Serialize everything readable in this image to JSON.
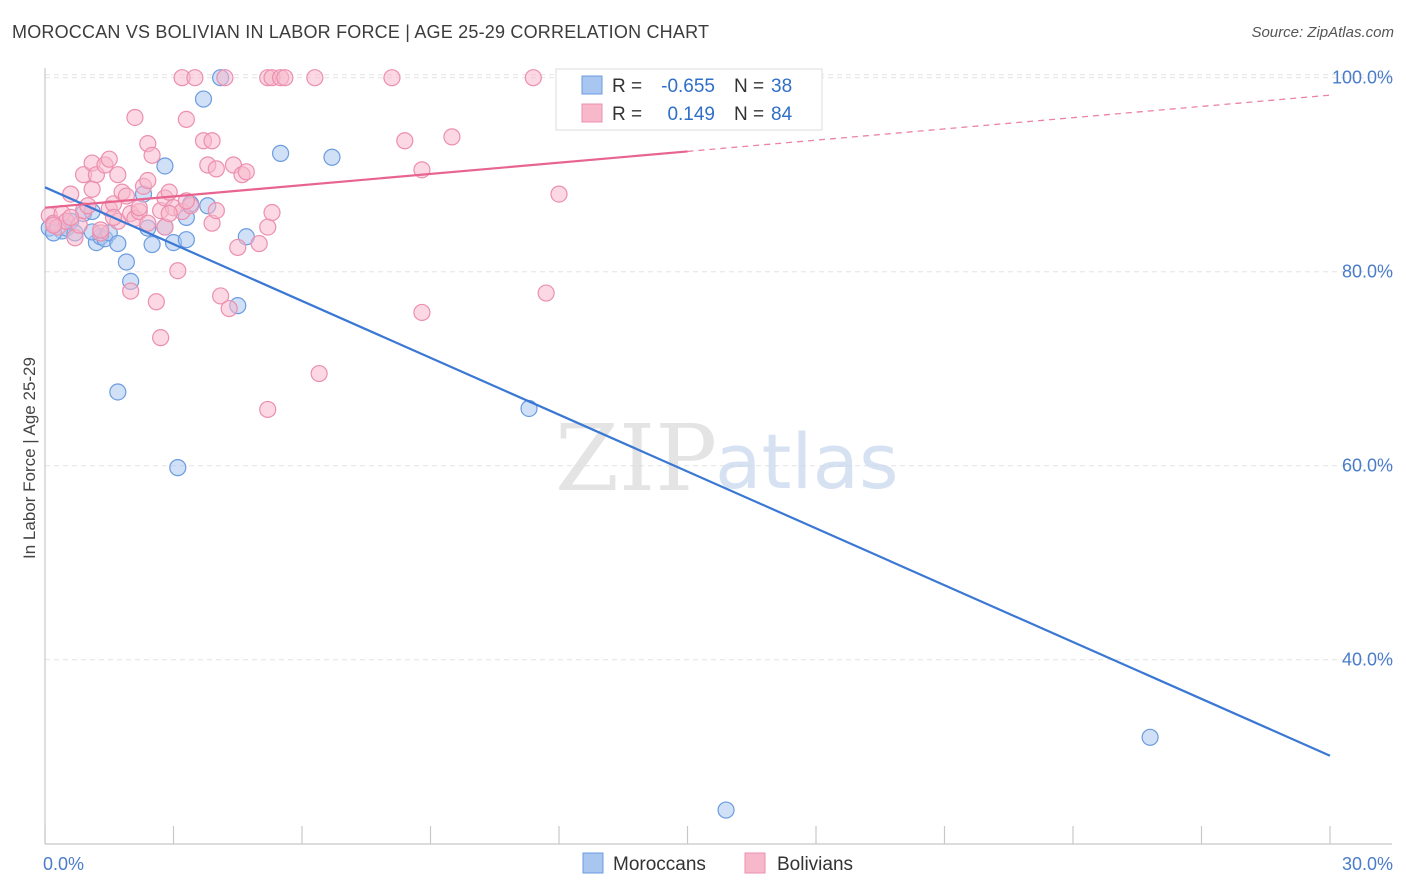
{
  "title": "MOROCCAN VS BOLIVIAN IN LABOR FORCE | AGE 25-29 CORRELATION CHART",
  "source": "Source: ZipAtlas.com",
  "watermark": {
    "zip": "ZIP",
    "atlas": "atlas"
  },
  "chart_data": {
    "type": "scatter",
    "xlabel": "",
    "ylabel": "In Labor Force | Age 25-29",
    "xlim": [
      0,
      30
    ],
    "ylim": [
      21,
      101
    ],
    "x_tick_labels": [
      "0.0%",
      "30.0%"
    ],
    "y_ticks": [
      100,
      80,
      60,
      40
    ],
    "y_tick_labels": [
      "100.0%",
      "80.0%",
      "60.0%",
      "40.0%"
    ],
    "colors": {
      "moroccans_fill": "#a9c6f0",
      "moroccans_stroke": "#6b9be0",
      "moroccans_line": "#3a78d4",
      "bolivians_fill": "#f7b8cc",
      "bolivians_stroke": "#ec8fae",
      "bolivians_line": "#e8648f",
      "grid": "#e3e3e3",
      "axis": "#c8c8c8",
      "tick_label": "#4a7cc9"
    },
    "legend_stats": [
      {
        "r_label": "R =",
        "r_value": "-0.655",
        "n_label": "N =",
        "n_value": "38"
      },
      {
        "r_label": "R =",
        "r_value": "0.149",
        "n_label": "N =",
        "n_value": "84"
      }
    ],
    "series": [
      {
        "name": "Moroccans",
        "trend": {
          "x": [
            0,
            30
          ],
          "y": [
            88.7,
            30.1
          ],
          "dashed_from_x": null
        },
        "points": [
          [
            0.1,
            84.5
          ],
          [
            0.2,
            85.0
          ],
          [
            0.4,
            84.2
          ],
          [
            0.5,
            84.5
          ],
          [
            0.6,
            85.2
          ],
          [
            0.9,
            86.0
          ],
          [
            1.1,
            86.2
          ],
          [
            1.2,
            83.0
          ],
          [
            1.3,
            83.6
          ],
          [
            1.4,
            83.4
          ],
          [
            1.5,
            84.0
          ],
          [
            1.7,
            82.9
          ],
          [
            1.7,
            67.6
          ],
          [
            1.9,
            81.0
          ],
          [
            2.0,
            79.0
          ],
          [
            2.3,
            88.0
          ],
          [
            2.4,
            84.5
          ],
          [
            2.5,
            82.8
          ],
          [
            2.8,
            84.6
          ],
          [
            2.8,
            90.9
          ],
          [
            3.0,
            83.0
          ],
          [
            3.1,
            59.8
          ],
          [
            3.3,
            83.3
          ],
          [
            3.3,
            85.6
          ],
          [
            3.4,
            87.0
          ],
          [
            3.7,
            97.8
          ],
          [
            3.8,
            86.8
          ],
          [
            4.1,
            100.0
          ],
          [
            4.5,
            76.5
          ],
          [
            4.7,
            83.6
          ],
          [
            5.5,
            92.2
          ],
          [
            6.7,
            91.8
          ],
          [
            11.3,
            65.9
          ],
          [
            15.9,
            24.5
          ],
          [
            25.8,
            32.0
          ],
          [
            0.2,
            84.0
          ],
          [
            0.7,
            84.0
          ],
          [
            1.1,
            84.1
          ]
        ]
      },
      {
        "name": "Bolivians",
        "trend": {
          "x": [
            0,
            30
          ],
          "y": [
            86.6,
            98.2
          ],
          "dashed_from_x": 15
        },
        "points": [
          [
            0.1,
            85.8
          ],
          [
            0.2,
            85.0
          ],
          [
            0.3,
            84.6
          ],
          [
            0.4,
            86.0
          ],
          [
            0.5,
            85.2
          ],
          [
            0.6,
            88.0
          ],
          [
            0.7,
            83.5
          ],
          [
            0.8,
            84.8
          ],
          [
            0.9,
            86.3
          ],
          [
            0.9,
            90.0
          ],
          [
            1.0,
            86.8
          ],
          [
            1.1,
            88.5
          ],
          [
            1.1,
            91.2
          ],
          [
            1.2,
            90.0
          ],
          [
            1.3,
            84.0
          ],
          [
            1.4,
            91.0
          ],
          [
            1.5,
            86.5
          ],
          [
            1.5,
            91.6
          ],
          [
            1.6,
            87.0
          ],
          [
            1.7,
            90.0
          ],
          [
            1.7,
            85.2
          ],
          [
            1.8,
            88.2
          ],
          [
            1.9,
            87.8
          ],
          [
            2.0,
            86.0
          ],
          [
            2.0,
            78.0
          ],
          [
            2.1,
            95.9
          ],
          [
            2.1,
            85.5
          ],
          [
            2.2,
            86.2
          ],
          [
            2.3,
            88.8
          ],
          [
            2.4,
            89.4
          ],
          [
            2.4,
            85.0
          ],
          [
            2.4,
            93.2
          ],
          [
            2.5,
            92.0
          ],
          [
            2.6,
            76.9
          ],
          [
            2.7,
            86.3
          ],
          [
            2.7,
            73.2
          ],
          [
            2.8,
            87.6
          ],
          [
            2.8,
            84.6
          ],
          [
            2.9,
            88.2
          ],
          [
            3.0,
            86.6
          ],
          [
            3.1,
            80.1
          ],
          [
            3.2,
            86.2
          ],
          [
            3.2,
            100.0
          ],
          [
            3.3,
            95.7
          ],
          [
            3.4,
            86.8
          ],
          [
            3.5,
            100.0
          ],
          [
            3.7,
            93.5
          ],
          [
            3.8,
            91.0
          ],
          [
            3.9,
            85.0
          ],
          [
            3.9,
            93.5
          ],
          [
            4.0,
            90.6
          ],
          [
            4.1,
            77.5
          ],
          [
            4.2,
            100.0
          ],
          [
            4.3,
            76.2
          ],
          [
            4.4,
            91.0
          ],
          [
            4.5,
            82.5
          ],
          [
            4.6,
            90.0
          ],
          [
            4.7,
            90.3
          ],
          [
            5.0,
            82.9
          ],
          [
            5.2,
            100.0
          ],
          [
            5.2,
            84.6
          ],
          [
            5.2,
            65.8
          ],
          [
            5.3,
            100.0
          ],
          [
            5.5,
            100.0
          ],
          [
            5.6,
            100.0
          ],
          [
            6.4,
            69.5
          ],
          [
            6.3,
            100.0
          ],
          [
            8.1,
            100.0
          ],
          [
            8.4,
            93.5
          ],
          [
            8.8,
            90.5
          ],
          [
            8.8,
            75.8
          ],
          [
            9.5,
            93.9
          ],
          [
            11.4,
            100.0
          ],
          [
            11.7,
            77.8
          ],
          [
            12.0,
            88.0
          ],
          [
            0.2,
            84.8
          ],
          [
            0.6,
            85.6
          ],
          [
            1.3,
            84.3
          ],
          [
            1.6,
            85.6
          ],
          [
            2.2,
            86.6
          ],
          [
            2.9,
            86.0
          ],
          [
            3.3,
            87.3
          ],
          [
            4.0,
            86.3
          ],
          [
            5.3,
            86.1
          ]
        ]
      }
    ]
  },
  "legend_bottom": [
    "Moroccans",
    "Bolivians"
  ]
}
